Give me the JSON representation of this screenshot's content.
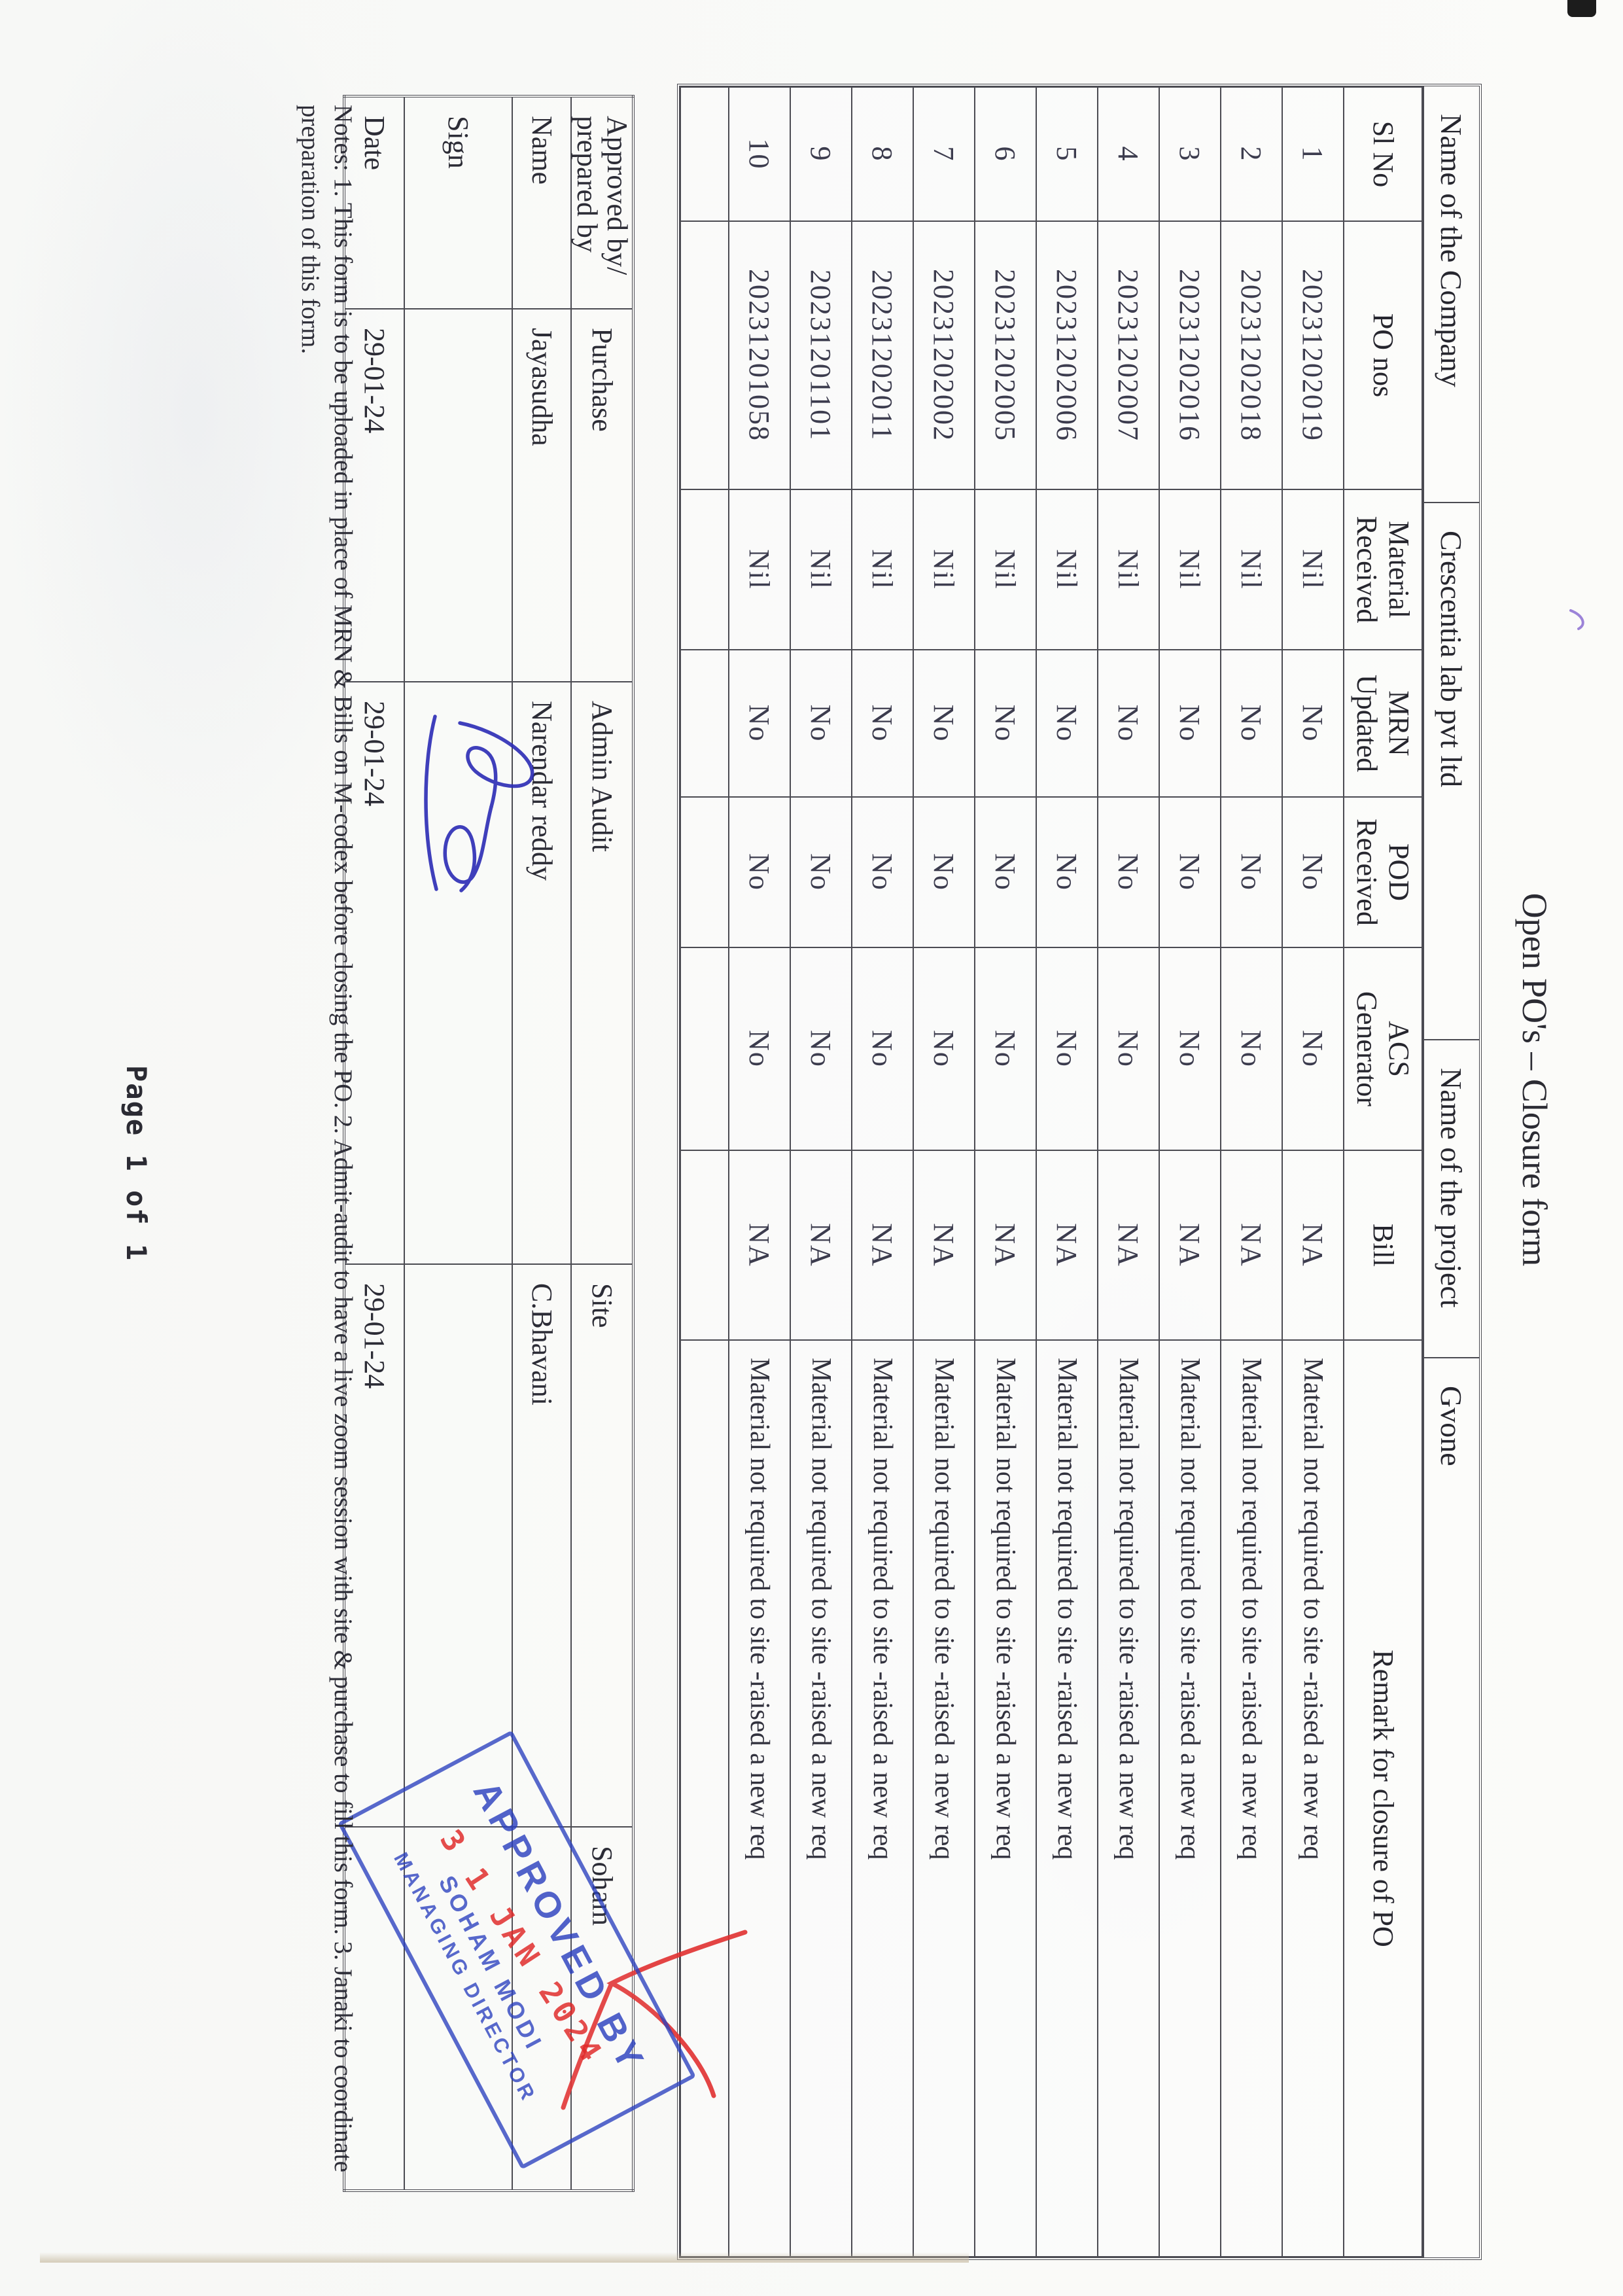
{
  "title": "Open PO's – Closure form",
  "main_table": {
    "company_row": {
      "company_label": "Name of the Company",
      "company_name": "Crescentia lab pvt ltd",
      "project_label": "Name of the project",
      "project_name": "Gvone"
    },
    "columns": [
      "Sl No",
      "PO nos",
      "Material\nReceived",
      "MRN\nUpdated",
      "POD\nReceived",
      "ACS\nGenerator",
      "Bill",
      "Remark for closure of PO"
    ],
    "rows": [
      {
        "sl_no": "1",
        "po_no": "20231202019",
        "material_received": "Nil",
        "mrn_updated": "No",
        "pod_received": "No",
        "acs_generator": "No",
        "bill": "NA",
        "remark": "Material not required to site -raised a new req"
      },
      {
        "sl_no": "2",
        "po_no": "20231202018",
        "material_received": "Nil",
        "mrn_updated": "No",
        "pod_received": "No",
        "acs_generator": "No",
        "bill": "NA",
        "remark": "Material not required to site -raised a new req"
      },
      {
        "sl_no": "3",
        "po_no": "20231202016",
        "material_received": "Nil",
        "mrn_updated": "No",
        "pod_received": "No",
        "acs_generator": "No",
        "bill": "NA",
        "remark": "Material not required to site -raised a new req"
      },
      {
        "sl_no": "4",
        "po_no": "20231202007",
        "material_received": "Nil",
        "mrn_updated": "No",
        "pod_received": "No",
        "acs_generator": "No",
        "bill": "NA",
        "remark": "Material not required to site -raised a new req"
      },
      {
        "sl_no": "5",
        "po_no": "20231202006",
        "material_received": "Nil",
        "mrn_updated": "No",
        "pod_received": "No",
        "acs_generator": "No",
        "bill": "NA",
        "remark": "Material not required to site -raised a new req"
      },
      {
        "sl_no": "6",
        "po_no": "20231202005",
        "material_received": "Nil",
        "mrn_updated": "No",
        "pod_received": "No",
        "acs_generator": "No",
        "bill": "NA",
        "remark": "Material not required to site -raised a new req"
      },
      {
        "sl_no": "7",
        "po_no": "20231202002",
        "material_received": "Nil",
        "mrn_updated": "No",
        "pod_received": "No",
        "acs_generator": "No",
        "bill": "NA",
        "remark": "Material not required to site -raised a new req"
      },
      {
        "sl_no": "8",
        "po_no": "20231202011",
        "material_received": "Nil",
        "mrn_updated": "No",
        "pod_received": "No",
        "acs_generator": "No",
        "bill": "NA",
        "remark": "Material not required to site -raised a new req"
      },
      {
        "sl_no": "9",
        "po_no": "20231201101",
        "material_received": "Nil",
        "mrn_updated": "No",
        "pod_received": "No",
        "acs_generator": "No",
        "bill": "NA",
        "remark": "Material not required to site -raised a new req"
      },
      {
        "sl_no": "10",
        "po_no": "20231201058",
        "material_received": "Nil",
        "mrn_updated": "No",
        "pod_received": "No",
        "acs_generator": "No",
        "bill": "NA",
        "remark": "Material not required to site -raised a new req"
      }
    ]
  },
  "approval_table": {
    "header_label": "Approved by/\nprepared by",
    "header_columns": [
      "Purchase",
      "Admin Audit",
      "Site",
      "Soham"
    ],
    "name_label": "Name",
    "names": [
      "Jayasudha",
      "Narendar reddy",
      "C.Bhavani",
      ""
    ],
    "sign_label": "Sign",
    "date_label": "Date",
    "dates": [
      "29-01-24",
      "29-01-24",
      "29-01-24",
      ""
    ]
  },
  "stamp": {
    "line1": "APPROVED BY",
    "date": "3 1 JAN 2024",
    "line3": "SOHAM MODI",
    "line4": "MANAGING DIRECTOR"
  },
  "notes_line1": "Notes: 1. This form is to be uploaded in place of MRN & Bills on M-codex before closing the PO. 2. Admit-audit to have a live zoom session with site & purchase to fill this form. 3. Janaki to coordinate",
  "notes_line2": "preparation of this form.",
  "footer": "Page 1 of 1",
  "colors": {
    "stamp_blue": "#2a3fbe",
    "stamp_red": "#e02828",
    "signature_blue": "#2b2bb5",
    "check_red": "#e03030",
    "ink_black": "#2b2b33",
    "paper": "#fbfbf9"
  }
}
